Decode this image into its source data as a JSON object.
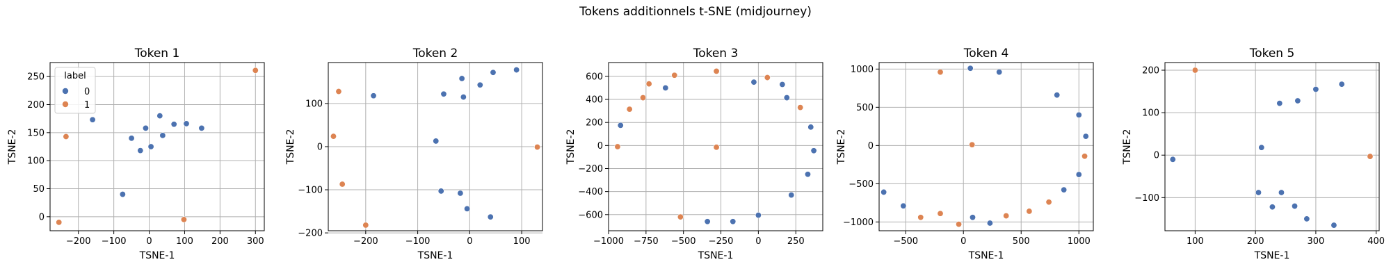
{
  "figure": {
    "suptitle": "Tokens additionnels t-SNE (midjourney)"
  },
  "colors": {
    "label_0": "#4c72b0",
    "label_1": "#dd8452",
    "grid": "#b0b0b0",
    "frame": "#000000"
  },
  "legend": {
    "title": "label",
    "entries": [
      "0",
      "1"
    ],
    "placement": "upper-left of first panel"
  },
  "chart_data": [
    {
      "type": "scatter",
      "title": "Token 1",
      "xlabel": "TSNE-1",
      "ylabel": "TSNE-2",
      "xlim": [
        -280,
        325
      ],
      "ylim": [
        -25,
        275
      ],
      "xticks": [
        -200,
        -100,
        0,
        100,
        200,
        300
      ],
      "yticks": [
        0,
        50,
        100,
        150,
        200,
        250
      ],
      "grid": true,
      "series": [
        {
          "name": "0",
          "points": [
            [
              -160,
              173
            ],
            [
              -50,
              140
            ],
            [
              -25,
              118
            ],
            [
              -10,
              158
            ],
            [
              5,
              125
            ],
            [
              30,
              180
            ],
            [
              38,
              145
            ],
            [
              70,
              165
            ],
            [
              105,
              166
            ],
            [
              148,
              158
            ],
            [
              -75,
              40
            ]
          ]
        },
        {
          "name": "1",
          "points": [
            [
              -235,
              143
            ],
            [
              -255,
              -10
            ],
            [
              300,
              261
            ],
            [
              98,
              -5
            ]
          ]
        }
      ]
    },
    {
      "type": "scatter",
      "title": "Token 2",
      "xlabel": "TSNE-1",
      "ylabel": "TSNE-2",
      "xlim": [
        -272,
        140
      ],
      "ylim": [
        -195,
        195
      ],
      "xticks": [
        -200,
        -100,
        0,
        100
      ],
      "yticks": [
        -200,
        -100,
        0,
        100
      ],
      "grid": true,
      "series": [
        {
          "name": "0",
          "points": [
            [
              -185,
              118
            ],
            [
              -65,
              13
            ],
            [
              -55,
              -103
            ],
            [
              -50,
              122
            ],
            [
              -18,
              -108
            ],
            [
              -15,
              158
            ],
            [
              -12,
              115
            ],
            [
              -5,
              -144
            ],
            [
              20,
              143
            ],
            [
              40,
              -163
            ],
            [
              45,
              172
            ],
            [
              90,
              178
            ]
          ]
        },
        {
          "name": "1",
          "points": [
            [
              -252,
              128
            ],
            [
              -262,
              24
            ],
            [
              -245,
              -87
            ],
            [
              -200,
              -182
            ],
            [
              130,
              -1
            ]
          ]
        }
      ]
    },
    {
      "type": "scatter",
      "title": "Token 3",
      "xlabel": "TSNE-1",
      "ylabel": "TSNE-2",
      "xlim": [
        -1000,
        430
      ],
      "ylim": [
        -740,
        720
      ],
      "xticks": [
        -1000,
        -750,
        -500,
        -250,
        0,
        250
      ],
      "yticks": [
        -600,
        -400,
        -200,
        0,
        200,
        400,
        600
      ],
      "grid": true,
      "series": [
        {
          "name": "0",
          "points": [
            [
              -920,
              175
            ],
            [
              -620,
              500
            ],
            [
              -30,
              550
            ],
            [
              160,
              530
            ],
            [
              190,
              415
            ],
            [
              350,
              160
            ],
            [
              370,
              -45
            ],
            [
              330,
              -250
            ],
            [
              220,
              -430
            ],
            [
              0,
              -605
            ],
            [
              -170,
              -660
            ],
            [
              -340,
              -660
            ]
          ]
        },
        {
          "name": "1",
          "points": [
            [
              -940,
              -10
            ],
            [
              -860,
              315
            ],
            [
              -770,
              415
            ],
            [
              -730,
              535
            ],
            [
              -560,
              610
            ],
            [
              -280,
              645
            ],
            [
              60,
              590
            ],
            [
              280,
              330
            ],
            [
              -280,
              -15
            ],
            [
              -520,
              -620
            ]
          ]
        }
      ]
    },
    {
      "type": "scatter",
      "title": "Token 4",
      "xlabel": "TSNE-1",
      "ylabel": "TSNE-2",
      "xlim": [
        -730,
        1125
      ],
      "ylim": [
        -1115,
        1085
      ],
      "xticks": [
        -500,
        0,
        500,
        1000
      ],
      "yticks": [
        -1000,
        -500,
        0,
        500,
        1000
      ],
      "grid": true,
      "series": [
        {
          "name": "0",
          "points": [
            [
              -690,
              -610
            ],
            [
              -520,
              -790
            ],
            [
              60,
              1010
            ],
            [
              310,
              960
            ],
            [
              810,
              660
            ],
            [
              1000,
              400
            ],
            [
              1060,
              120
            ],
            [
              1000,
              -380
            ],
            [
              870,
              -580
            ],
            [
              80,
              -940
            ],
            [
              230,
              -1015
            ]
          ]
        },
        {
          "name": "1",
          "points": [
            [
              -200,
              960
            ],
            [
              75,
              10
            ],
            [
              1050,
              -140
            ],
            [
              -370,
              -940
            ],
            [
              -200,
              -890
            ],
            [
              -40,
              -1030
            ],
            [
              370,
              -920
            ],
            [
              570,
              -860
            ],
            [
              740,
              -740
            ]
          ]
        }
      ]
    },
    {
      "type": "scatter",
      "title": "Token 5",
      "xlabel": "TSNE-1",
      "ylabel": "TSNE-2",
      "xlim": [
        50,
        405
      ],
      "ylim": [
        -178,
        218
      ],
      "xticks": [
        100,
        200,
        300,
        400
      ],
      "yticks": [
        -100,
        0,
        100,
        200
      ],
      "grid": true,
      "series": [
        {
          "name": "0",
          "points": [
            [
              63,
              -10
            ],
            [
              205,
              -88
            ],
            [
              210,
              18
            ],
            [
              228,
              -122
            ],
            [
              240,
              122
            ],
            [
              243,
              -88
            ],
            [
              265,
              -120
            ],
            [
              270,
              128
            ],
            [
              285,
              -150
            ],
            [
              300,
              155
            ],
            [
              330,
              -165
            ],
            [
              343,
              167
            ]
          ]
        },
        {
          "name": "1",
          "points": [
            [
              100,
              200
            ],
            [
              390,
              -3
            ]
          ]
        }
      ]
    }
  ]
}
